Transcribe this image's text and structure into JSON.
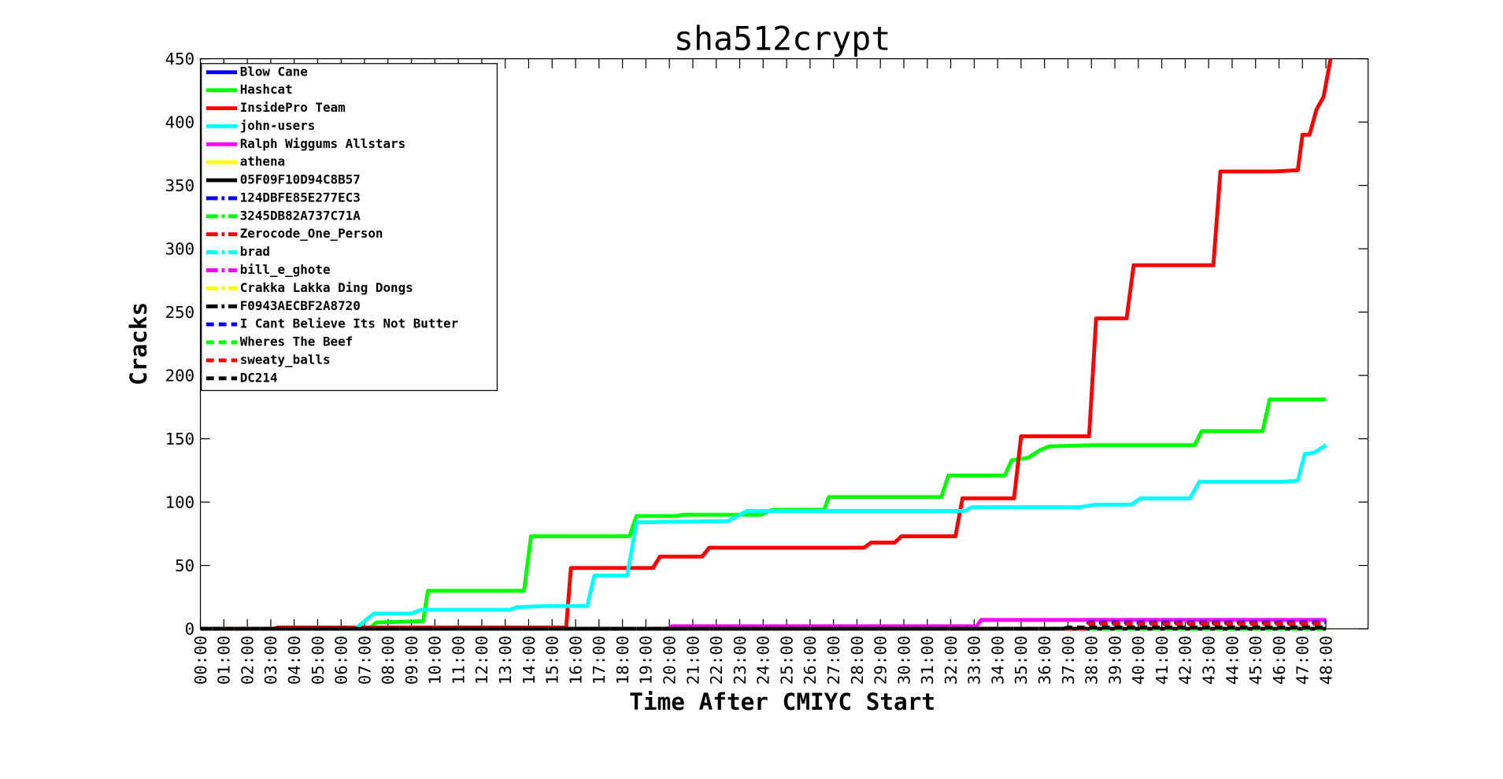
{
  "chart_data": {
    "type": "line",
    "title": "sha512crypt",
    "xlabel": "Time After CMIYC Start",
    "ylabel": "Cracks",
    "xlim": [
      0,
      49.8
    ],
    "ylim": [
      0,
      450
    ],
    "yticks": [
      0,
      50,
      100,
      150,
      200,
      250,
      300,
      350,
      400,
      450
    ],
    "xticks": [
      {
        "value": 0,
        "label": "00:00"
      },
      {
        "value": 1,
        "label": "01:00"
      },
      {
        "value": 2,
        "label": "02:00"
      },
      {
        "value": 3,
        "label": "03:00"
      },
      {
        "value": 4,
        "label": "04:00"
      },
      {
        "value": 5,
        "label": "05:00"
      },
      {
        "value": 6,
        "label": "06:00"
      },
      {
        "value": 7,
        "label": "07:00"
      },
      {
        "value": 8,
        "label": "08:00"
      },
      {
        "value": 9,
        "label": "09:00"
      },
      {
        "value": 10,
        "label": "10:00"
      },
      {
        "value": 11,
        "label": "11:00"
      },
      {
        "value": 12,
        "label": "12:00"
      },
      {
        "value": 13,
        "label": "13:00"
      },
      {
        "value": 14,
        "label": "14:00"
      },
      {
        "value": 15,
        "label": "15:00"
      },
      {
        "value": 16,
        "label": "16:00"
      },
      {
        "value": 17,
        "label": "17:00"
      },
      {
        "value": 18,
        "label": "18:00"
      },
      {
        "value": 19,
        "label": "19:00"
      },
      {
        "value": 20,
        "label": "20:00"
      },
      {
        "value": 21,
        "label": "21:00"
      },
      {
        "value": 22,
        "label": "22:00"
      },
      {
        "value": 23,
        "label": "23:00"
      },
      {
        "value": 24,
        "label": "24:00"
      },
      {
        "value": 25,
        "label": "25:00"
      },
      {
        "value": 26,
        "label": "26:00"
      },
      {
        "value": 27,
        "label": "27:00"
      },
      {
        "value": 28,
        "label": "28:00"
      },
      {
        "value": 29,
        "label": "29:00"
      },
      {
        "value": 30,
        "label": "30:00"
      },
      {
        "value": 31,
        "label": "31:00"
      },
      {
        "value": 32,
        "label": "32:00"
      },
      {
        "value": 33,
        "label": "33:00"
      },
      {
        "value": 34,
        "label": "34:00"
      },
      {
        "value": 35,
        "label": "35:00"
      },
      {
        "value": 36,
        "label": "36:00"
      },
      {
        "value": 37,
        "label": "37:00"
      },
      {
        "value": 38,
        "label": "38:00"
      },
      {
        "value": 39,
        "label": "39:00"
      },
      {
        "value": 40,
        "label": "40:00"
      },
      {
        "value": 41,
        "label": "41:00"
      },
      {
        "value": 42,
        "label": "42:00"
      },
      {
        "value": 43,
        "label": "43:00"
      },
      {
        "value": 44,
        "label": "44:00"
      },
      {
        "value": 45,
        "label": "45:00"
      },
      {
        "value": 46,
        "label": "46:00"
      },
      {
        "value": 47,
        "label": "47:00"
      },
      {
        "value": 48,
        "label": "48:00"
      }
    ],
    "legend": "upper left",
    "grid": false,
    "series": [
      {
        "name": "Blow Cane",
        "color": "#0000ff",
        "linestyle": "-",
        "x": [
          0,
          48
        ],
        "values": [
          0,
          0
        ]
      },
      {
        "name": "Hashcat",
        "color": "#00ff00",
        "linestyle": "-",
        "x": [
          0,
          7.2,
          7.5,
          9.5,
          9.7,
          13.8,
          14.1,
          18.3,
          18.6,
          20.3,
          20.6,
          23.9,
          24.4,
          26.6,
          26.8,
          31.6,
          31.9,
          34.3,
          34.6,
          35.3,
          35.8,
          36.2,
          38,
          42.4,
          42.7,
          45.3,
          45.6,
          48
        ],
        "values": [
          0,
          0,
          5,
          6,
          30,
          30,
          73,
          73,
          89,
          89,
          90,
          90,
          94,
          94,
          104,
          104,
          121,
          121,
          133,
          135,
          141,
          144,
          145,
          145,
          156,
          156,
          181,
          181
        ]
      },
      {
        "name": "InsidePro Team",
        "color": "#ff0000",
        "linestyle": "-",
        "x": [
          0,
          3.1,
          3.3,
          15.6,
          15.8,
          18.1,
          19.3,
          19.6,
          21.4,
          21.7,
          28.3,
          28.6,
          29.6,
          29.9,
          32.2,
          32.5,
          34.7,
          35,
          37.9,
          38.2,
          39.5,
          39.8,
          43.2,
          43.5,
          45.8,
          46.8,
          47,
          47.3,
          47.6,
          47.9,
          48.2
        ],
        "values": [
          0,
          0,
          1,
          1,
          48,
          48,
          48,
          57,
          57,
          64,
          64,
          68,
          68,
          73,
          73,
          103,
          103,
          152,
          152,
          245,
          245,
          287,
          287,
          361,
          361,
          362,
          390,
          390,
          410,
          420,
          450
        ]
      },
      {
        "name": "john-users",
        "color": "#00ffff",
        "linestyle": "-",
        "x": [
          0,
          6.6,
          7,
          7.4,
          9,
          9.4,
          13.2,
          13.5,
          14.8,
          16.5,
          16.8,
          18.2,
          18.6,
          22.5,
          22.8,
          23.3,
          32.6,
          32.9,
          37.5,
          38.2,
          39.7,
          40.1,
          42.2,
          42.6,
          46.2,
          46.8,
          47.1,
          47.5,
          48
        ],
        "values": [
          0,
          0,
          6,
          12,
          12,
          15,
          15,
          17,
          18,
          18,
          42,
          42,
          84,
          85,
          88,
          93,
          93,
          96,
          96,
          98,
          98,
          103,
          103,
          116,
          116,
          117,
          138,
          139,
          145
        ]
      },
      {
        "name": "Ralph Wiggums Allstars",
        "color": "#ff00ff",
        "linestyle": "-",
        "x": [
          0,
          19.9,
          20.1,
          33.1,
          33.3,
          48
        ],
        "values": [
          0,
          0,
          2,
          2,
          7,
          7
        ]
      },
      {
        "name": "athena",
        "color": "#ffff00",
        "linestyle": "-",
        "x": [
          0,
          48
        ],
        "values": [
          0,
          0
        ]
      },
      {
        "name": "05F09F10D94C8B57",
        "color": "#000000",
        "linestyle": "-",
        "x": [
          0,
          48
        ],
        "values": [
          0,
          0
        ]
      },
      {
        "name": "124DBFE85E277EC3",
        "color": "#0000ff",
        "linestyle": "-.",
        "x": [
          0,
          48
        ],
        "values": [
          0,
          0
        ]
      },
      {
        "name": "3245DB82A737C71A",
        "color": "#00ff00",
        "linestyle": "-.",
        "x": [
          0,
          48
        ],
        "values": [
          0,
          0
        ]
      },
      {
        "name": "Zerocode_One_Person",
        "color": "#ff0000",
        "linestyle": "-.",
        "x": [
          0,
          48
        ],
        "values": [
          0,
          0
        ]
      },
      {
        "name": "brad",
        "color": "#00ffff",
        "linestyle": "-.",
        "x": [
          0,
          48
        ],
        "values": [
          0,
          0
        ]
      },
      {
        "name": "bill_e_ghote",
        "color": "#ff00ff",
        "linestyle": "-.",
        "x": [
          0,
          48
        ],
        "values": [
          0,
          0
        ]
      },
      {
        "name": "Crakka Lakka Ding Dongs",
        "color": "#ffff00",
        "linestyle": "-.",
        "x": [
          0,
          48
        ],
        "values": [
          0,
          0
        ]
      },
      {
        "name": "F0943AECBF2A8720",
        "color": "#000000",
        "linestyle": "-.",
        "x": [
          0,
          48
        ],
        "values": [
          0,
          0
        ]
      },
      {
        "name": "I Cant Believe Its Not Butter",
        "color": "#0000ff",
        "linestyle": "--",
        "x": [
          0,
          37.7,
          37.9,
          48
        ],
        "values": [
          0,
          0,
          5,
          5
        ]
      },
      {
        "name": "Wheres The Beef",
        "color": "#00ff00",
        "linestyle": "--",
        "x": [
          0,
          48
        ],
        "values": [
          0,
          0
        ]
      },
      {
        "name": "sweaty_balls",
        "color": "#ff0000",
        "linestyle": "--",
        "x": [
          0,
          37.7,
          37.9,
          48
        ],
        "values": [
          0,
          0,
          4,
          4
        ]
      },
      {
        "name": "DC214",
        "color": "#000000",
        "linestyle": "--",
        "x": [
          0,
          36.8,
          37,
          48
        ],
        "values": [
          0,
          0,
          1,
          1
        ]
      }
    ]
  }
}
